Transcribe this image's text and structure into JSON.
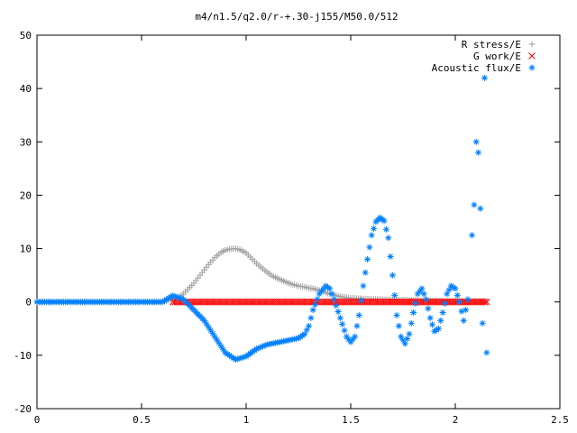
{
  "chart_data": {
    "type": "scatter",
    "title": "m4/n1.5/q2.0/r-+.30-j155/M50.0/512",
    "xlabel": "",
    "ylabel": "",
    "xlim": [
      0,
      2.5
    ],
    "ylim": [
      -20,
      50
    ],
    "x_ticks": [
      0,
      0.5,
      1,
      1.5,
      2,
      2.5
    ],
    "x_tick_labels": [
      "0",
      "0.5",
      "1",
      "1.5",
      "2",
      "2.5"
    ],
    "y_ticks": [
      -20,
      -10,
      0,
      10,
      20,
      30,
      40,
      50
    ],
    "y_tick_labels": [
      "-20",
      "-10",
      "0",
      "10",
      "20",
      "30",
      "40",
      "50"
    ],
    "grid": false,
    "legend_position": "top-right",
    "series": [
      {
        "name": "R stress/E",
        "marker": "+",
        "color": "#a0a0a0",
        "x": [
          0.0,
          0.1,
          0.2,
          0.3,
          0.4,
          0.5,
          0.6,
          0.65,
          0.68,
          0.7,
          0.72,
          0.75,
          0.78,
          0.8,
          0.82,
          0.85,
          0.88,
          0.9,
          0.92,
          0.95,
          0.97,
          1.0,
          1.02,
          1.05,
          1.08,
          1.1,
          1.12,
          1.15,
          1.18,
          1.2,
          1.22,
          1.25,
          1.28,
          1.3,
          1.32,
          1.35,
          1.38,
          1.4,
          1.45,
          1.5,
          1.6,
          1.7,
          1.8,
          1.9,
          2.0,
          2.1,
          2.15
        ],
        "y": [
          0,
          0,
          0,
          0,
          0,
          0,
          0,
          0.5,
          1,
          1.5,
          2.3,
          3.5,
          5,
          6,
          7,
          8.3,
          9.3,
          9.7,
          9.9,
          10,
          9.8,
          9.2,
          8.4,
          7.2,
          6.2,
          5.6,
          5,
          4.4,
          3.9,
          3.6,
          3.3,
          3,
          2.8,
          2.6,
          2.5,
          2.2,
          1.8,
          1.5,
          1.0,
          0.7,
          0.5,
          0.4,
          0.3,
          0.2,
          0.1,
          0.1,
          0.1
        ]
      },
      {
        "name": "G work/E",
        "marker": "x",
        "color": "#ff0000",
        "x": [
          0.65,
          0.7,
          0.75,
          0.8,
          0.85,
          0.9,
          0.95,
          1.0,
          1.05,
          1.1,
          1.15,
          1.2,
          1.25,
          1.3,
          1.35,
          1.4,
          1.45,
          1.5,
          1.55,
          1.6,
          1.65,
          1.7,
          1.75,
          1.8,
          1.85,
          1.9,
          1.95,
          2.0,
          2.05,
          2.1,
          2.15
        ],
        "y": [
          0,
          0,
          0,
          0,
          0,
          0,
          0,
          0,
          0,
          0,
          0,
          0,
          0,
          0,
          0,
          0,
          0,
          0,
          0,
          0,
          0,
          0,
          0,
          0,
          0,
          0,
          0,
          0,
          0,
          0,
          0
        ]
      },
      {
        "name": "Acoustic flux/E",
        "marker": "*",
        "color": "#0080ff",
        "x": [
          0.0,
          0.1,
          0.2,
          0.3,
          0.4,
          0.5,
          0.6,
          0.65,
          0.7,
          0.75,
          0.8,
          0.85,
          0.9,
          0.95,
          1.0,
          1.05,
          1.1,
          1.15,
          1.2,
          1.25,
          1.28,
          1.3,
          1.32,
          1.35,
          1.38,
          1.4,
          1.42,
          1.45,
          1.48,
          1.5,
          1.52,
          1.54,
          1.56,
          1.58,
          1.6,
          1.62,
          1.64,
          1.66,
          1.68,
          1.7,
          1.72,
          1.74,
          1.76,
          1.78,
          1.8,
          1.82,
          1.84,
          1.86,
          1.88,
          1.9,
          1.92,
          1.94,
          1.96,
          1.98,
          2.0,
          2.02,
          2.04,
          2.06,
          2.08,
          2.09,
          2.1,
          2.11,
          2.12,
          2.13,
          2.14,
          2.15
        ],
        "y": [
          0,
          0,
          0,
          0,
          0,
          0,
          0,
          1.2,
          0.5,
          -1.5,
          -3.5,
          -6.5,
          -9.5,
          -10.8,
          -10.2,
          -8.8,
          -8.0,
          -7.6,
          -7.2,
          -6.8,
          -6.0,
          -4.5,
          -1.5,
          1.5,
          3.0,
          2.5,
          0.5,
          -3.0,
          -6.5,
          -7.5,
          -6.5,
          -2.5,
          3.0,
          8.0,
          12.5,
          15.0,
          15.8,
          15.2,
          12.0,
          5.0,
          -2.5,
          -6.5,
          -7.8,
          -6.0,
          -2.0,
          1.5,
          2.5,
          0.5,
          -3.0,
          -5.5,
          -5.0,
          -2.0,
          1.5,
          3.0,
          2.5,
          0.0,
          -3.5,
          0.5,
          12.5,
          18.2,
          30.0,
          28.0,
          17.5,
          -4.0,
          42.0,
          -9.5
        ]
      }
    ]
  }
}
